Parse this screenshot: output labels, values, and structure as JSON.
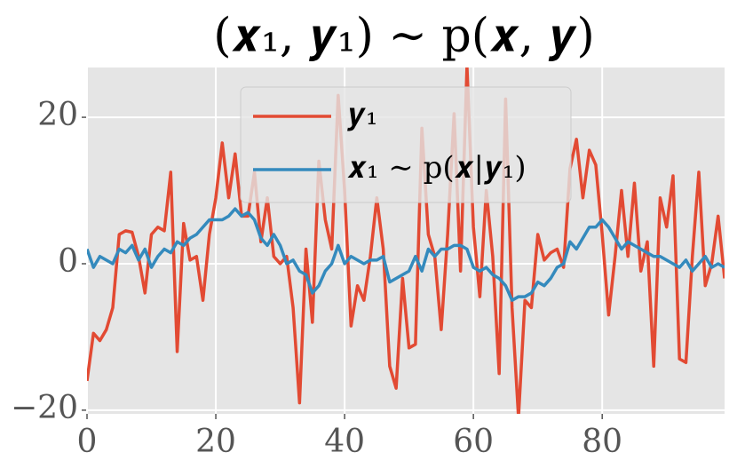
{
  "chart_data": {
    "type": "line",
    "title": "(𝒙₁, 𝒚₁) ∼ p(𝒙, 𝒚)",
    "x": [
      0,
      1,
      2,
      3,
      4,
      5,
      6,
      7,
      8,
      9,
      10,
      11,
      12,
      13,
      14,
      15,
      16,
      17,
      18,
      19,
      20,
      21,
      22,
      23,
      24,
      25,
      26,
      27,
      28,
      29,
      30,
      31,
      32,
      33,
      34,
      35,
      36,
      37,
      38,
      39,
      40,
      41,
      42,
      43,
      44,
      45,
      46,
      47,
      48,
      49,
      50,
      51,
      52,
      53,
      54,
      55,
      56,
      57,
      58,
      59,
      60,
      61,
      62,
      63,
      64,
      65,
      66,
      67,
      68,
      69,
      70,
      71,
      72,
      73,
      74,
      75,
      76,
      77,
      78,
      79,
      80,
      81,
      82,
      83,
      84,
      85,
      86,
      87,
      88,
      89,
      90,
      91,
      92,
      93,
      94,
      95,
      96,
      97,
      98,
      99
    ],
    "series": [
      {
        "name": "𝒚₁",
        "color": "#E24A33",
        "values": [
          -16,
          -9.5,
          -10.5,
          -9,
          -6,
          4,
          4.5,
          4.3,
          1,
          -4,
          4,
          5,
          4.5,
          12.5,
          -12,
          5.5,
          0.5,
          1,
          -5,
          4,
          9,
          16.5,
          9,
          15,
          6.5,
          6.5,
          12.5,
          3,
          9,
          1,
          0,
          1,
          -6,
          -19,
          2,
          -8,
          14,
          6,
          2,
          23,
          10,
          -8.5,
          -3,
          -5,
          1,
          9,
          2,
          -14,
          -17,
          -2,
          -11.5,
          -11,
          18.5,
          4,
          1,
          -9,
          4,
          20.5,
          -1,
          27,
          5,
          -4.5,
          10,
          1,
          -15,
          22.5,
          -6,
          -21,
          -5,
          -6,
          4,
          0.5,
          1.5,
          2,
          -0.5,
          13,
          17,
          9,
          15.5,
          13.5,
          4,
          -7,
          1,
          10,
          1,
          11,
          -1,
          3,
          -14,
          9,
          5,
          12,
          -13,
          -13.5,
          1,
          12.5,
          -3,
          0,
          6.5,
          -2
        ]
      },
      {
        "name": "𝒙₁ ∼ p(𝒙|𝒚₁)",
        "color": "#348ABD",
        "values": [
          2,
          -0.5,
          1,
          0.5,
          0,
          2,
          1.5,
          2.5,
          0.5,
          2,
          -0.5,
          1,
          2,
          1.5,
          3,
          2.5,
          3.5,
          4,
          5,
          6,
          6,
          6,
          6.5,
          7.5,
          6.5,
          7,
          6,
          3.5,
          2.5,
          4,
          2.5,
          0,
          0.5,
          -1,
          -1.5,
          -4,
          -3,
          -1,
          0,
          2.5,
          0,
          1,
          0.5,
          0,
          0.5,
          0.5,
          1,
          -2.5,
          -2,
          -1.5,
          -1,
          1,
          -1,
          2,
          1,
          2,
          2,
          2.5,
          2.5,
          2,
          -0.5,
          -1,
          -0.5,
          -1.5,
          -2,
          -3,
          -5,
          -4.5,
          -4.5,
          -4,
          -2.5,
          -3,
          -2,
          -0.5,
          0,
          3,
          2,
          3.5,
          5,
          5,
          6,
          5,
          3.5,
          2,
          3,
          2.5,
          2,
          1.5,
          1,
          1,
          0.5,
          0,
          -0.5,
          0.5,
          -1,
          0,
          1,
          -0.5,
          0,
          -0.5
        ]
      }
    ],
    "xlim": [
      0,
      99
    ],
    "ylim": [
      -20.5,
      26.8
    ],
    "xticks": [
      0,
      20,
      40,
      60,
      80
    ],
    "yticks": [
      {
        "value": -20,
        "label": "−20"
      },
      0,
      20
    ],
    "grid": true,
    "legend": "upper center"
  }
}
